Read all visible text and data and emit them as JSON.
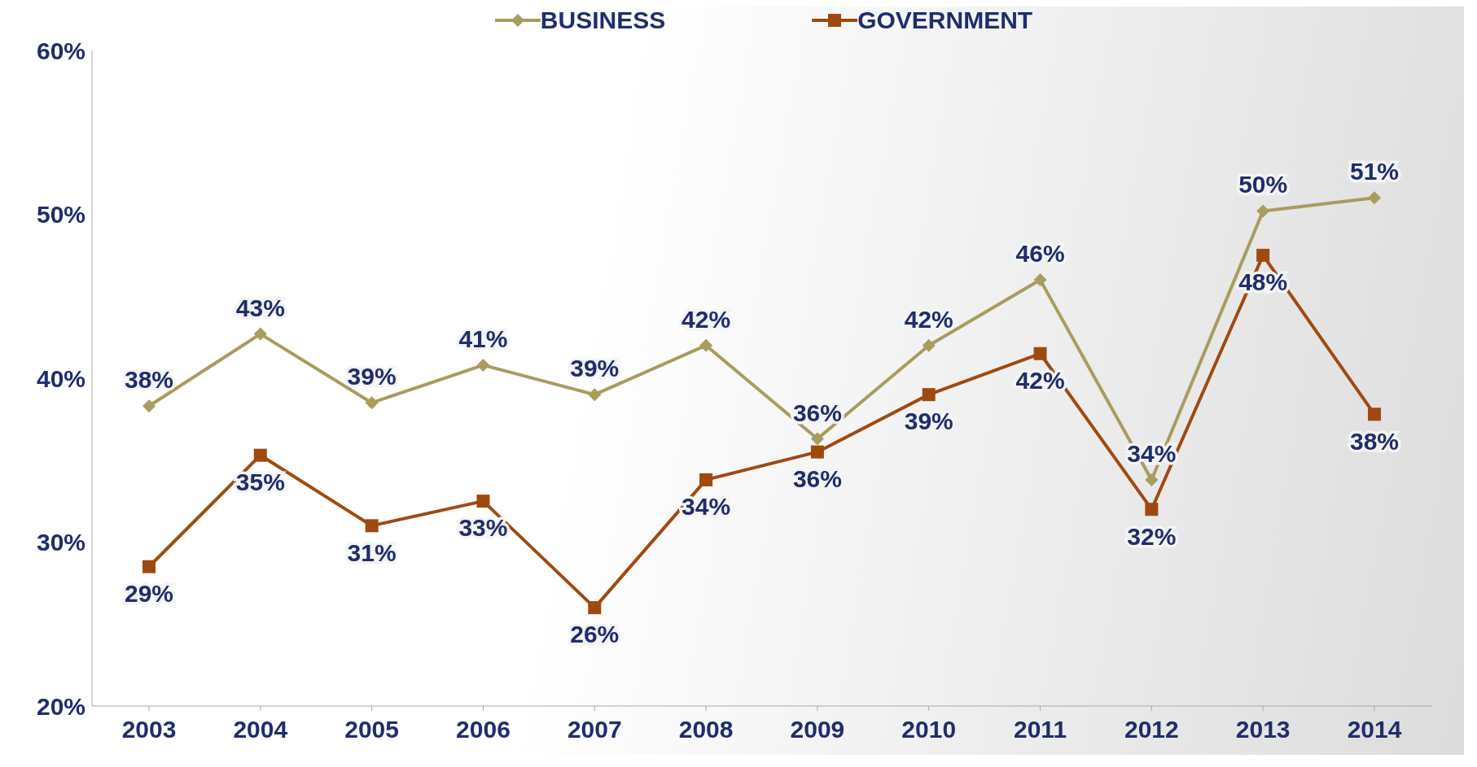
{
  "chart_data": {
    "type": "line",
    "categories": [
      "2003",
      "2004",
      "2005",
      "2006",
      "2007",
      "2008",
      "2009",
      "2010",
      "2011",
      "2012",
      "2013",
      "2014"
    ],
    "series": [
      {
        "name": "BUSINESS",
        "color": "#a89c5e",
        "marker": "diamond",
        "values": [
          38.3,
          42.7,
          38.5,
          40.8,
          39,
          42,
          36.3,
          42,
          46,
          33.8,
          50.2,
          51
        ],
        "value_labels": [
          "38%",
          "43%",
          "39%",
          "41%",
          "39%",
          "42%",
          "36%",
          "42%",
          "46%",
          "34%",
          "50%",
          "51%"
        ]
      },
      {
        "name": "GOVERNMENT",
        "color": "#a0490f",
        "marker": "square",
        "values": [
          28.5,
          35.3,
          31,
          32.5,
          26,
          33.8,
          35.5,
          39,
          41.5,
          32,
          47.5,
          37.8
        ],
        "value_labels": [
          "29%",
          "35%",
          "31%",
          "33%",
          "26%",
          "34%",
          "36%",
          "39%",
          "42%",
          "32%",
          "48%",
          "38%"
        ]
      }
    ],
    "ylim": [
      20,
      60
    ],
    "yticks": [
      {
        "value": 20,
        "label": "20%"
      },
      {
        "value": 30,
        "label": "30%"
      },
      {
        "value": 40,
        "label": "40%"
      },
      {
        "value": 50,
        "label": "50%"
      },
      {
        "value": 60,
        "label": "60%"
      }
    ],
    "grid": false,
    "legend": "top",
    "line_style": "solid"
  }
}
